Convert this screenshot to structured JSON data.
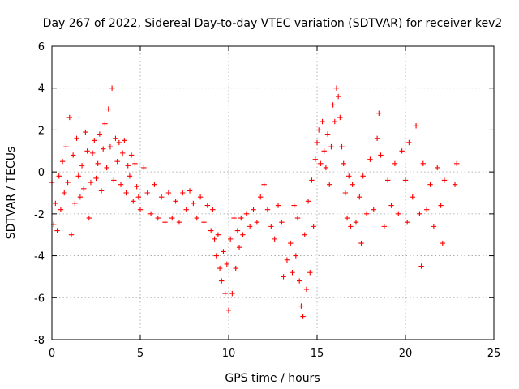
{
  "chart_data": {
    "type": "scatter",
    "title": "Day 267 of 2022, Sidereal Day-to-day VTEC variation (SDTVAR) for receiver kev2",
    "xlabel": "GPS time / hours",
    "ylabel": "SDTVAR / TECUs",
    "xlim": [
      0,
      25
    ],
    "ylim": [
      -8,
      6
    ],
    "xticks": [
      0,
      5,
      10,
      15,
      20,
      25
    ],
    "xtick_labels": [
      "0",
      "5",
      "10",
      "15",
      "20",
      "25"
    ],
    "yticks": [
      -8,
      -6,
      -4,
      -2,
      0,
      2,
      4,
      6
    ],
    "ytick_labels": [
      "-8",
      "-6",
      "-4",
      "-2",
      "0",
      "2",
      "4",
      "6"
    ],
    "grid": true,
    "marker": "plus",
    "marker_color": "#ff0000",
    "series": [
      {
        "name": "SDTVAR",
        "points": [
          [
            0.0,
            -0.5
          ],
          [
            0.1,
            -2.5
          ],
          [
            0.2,
            -1.5
          ],
          [
            0.3,
            -2.8
          ],
          [
            0.4,
            -0.2
          ],
          [
            0.5,
            -1.8
          ],
          [
            0.6,
            0.5
          ],
          [
            0.7,
            -1.0
          ],
          [
            0.8,
            1.2
          ],
          [
            0.9,
            -0.5
          ],
          [
            1.0,
            2.6
          ],
          [
            1.1,
            -3.0
          ],
          [
            1.2,
            0.8
          ],
          [
            1.3,
            -1.5
          ],
          [
            1.4,
            1.6
          ],
          [
            1.5,
            -0.2
          ],
          [
            1.6,
            -1.2
          ],
          [
            1.7,
            0.3
          ],
          [
            1.8,
            -0.8
          ],
          [
            1.9,
            1.9
          ],
          [
            2.0,
            1.0
          ],
          [
            2.1,
            -2.2
          ],
          [
            2.2,
            -0.5
          ],
          [
            2.3,
            0.9
          ],
          [
            2.4,
            1.5
          ],
          [
            2.5,
            -0.3
          ],
          [
            2.6,
            0.4
          ],
          [
            2.7,
            1.8
          ],
          [
            2.8,
            -0.9
          ],
          [
            2.9,
            1.1
          ],
          [
            3.0,
            2.3
          ],
          [
            3.1,
            0.2
          ],
          [
            3.2,
            3.0
          ],
          [
            3.3,
            1.2
          ],
          [
            3.4,
            4.0
          ],
          [
            3.5,
            -0.4
          ],
          [
            3.6,
            1.6
          ],
          [
            3.7,
            0.5
          ],
          [
            3.8,
            1.4
          ],
          [
            3.9,
            -0.6
          ],
          [
            4.0,
            0.9
          ],
          [
            4.1,
            1.5
          ],
          [
            4.2,
            -1.0
          ],
          [
            4.3,
            0.3
          ],
          [
            4.4,
            -0.2
          ],
          [
            4.5,
            0.8
          ],
          [
            4.6,
            -1.4
          ],
          [
            4.7,
            0.4
          ],
          [
            4.8,
            -0.7
          ],
          [
            4.9,
            -1.2
          ],
          [
            5.0,
            -1.8
          ],
          [
            5.2,
            0.2
          ],
          [
            5.4,
            -1.0
          ],
          [
            5.6,
            -2.0
          ],
          [
            5.8,
            -0.6
          ],
          [
            6.0,
            -2.2
          ],
          [
            6.2,
            -1.2
          ],
          [
            6.4,
            -2.4
          ],
          [
            6.6,
            -1.0
          ],
          [
            6.8,
            -2.2
          ],
          [
            7.0,
            -1.4
          ],
          [
            7.2,
            -2.4
          ],
          [
            7.4,
            -1.0
          ],
          [
            7.6,
            -1.8
          ],
          [
            7.8,
            -0.9
          ],
          [
            8.0,
            -1.5
          ],
          [
            8.2,
            -2.2
          ],
          [
            8.4,
            -1.2
          ],
          [
            8.6,
            -2.4
          ],
          [
            8.8,
            -1.6
          ],
          [
            9.0,
            -2.8
          ],
          [
            9.1,
            -1.8
          ],
          [
            9.2,
            -3.2
          ],
          [
            9.3,
            -4.0
          ],
          [
            9.4,
            -3.0
          ],
          [
            9.5,
            -4.6
          ],
          [
            9.6,
            -5.2
          ],
          [
            9.7,
            -3.8
          ],
          [
            9.8,
            -5.8
          ],
          [
            9.9,
            -4.4
          ],
          [
            10.0,
            -6.6
          ],
          [
            10.1,
            -3.2
          ],
          [
            10.2,
            -5.8
          ],
          [
            10.3,
            -2.2
          ],
          [
            10.4,
            -4.6
          ],
          [
            10.5,
            -2.8
          ],
          [
            10.6,
            -3.6
          ],
          [
            10.7,
            -2.2
          ],
          [
            10.8,
            -3.0
          ],
          [
            11.0,
            -2.0
          ],
          [
            11.2,
            -2.6
          ],
          [
            11.4,
            -1.8
          ],
          [
            11.6,
            -2.4
          ],
          [
            11.8,
            -1.2
          ],
          [
            12.0,
            -0.6
          ],
          [
            12.2,
            -1.8
          ],
          [
            12.4,
            -2.6
          ],
          [
            12.6,
            -3.2
          ],
          [
            12.8,
            -1.6
          ],
          [
            13.0,
            -2.4
          ],
          [
            13.1,
            -5.0
          ],
          [
            13.3,
            -4.2
          ],
          [
            13.5,
            -3.4
          ],
          [
            13.6,
            -4.8
          ],
          [
            13.7,
            -1.6
          ],
          [
            13.8,
            -4.0
          ],
          [
            13.9,
            -2.2
          ],
          [
            14.0,
            -5.2
          ],
          [
            14.1,
            -6.4
          ],
          [
            14.2,
            -6.9
          ],
          [
            14.3,
            -3.0
          ],
          [
            14.4,
            -5.6
          ],
          [
            14.5,
            -1.4
          ],
          [
            14.6,
            -4.8
          ],
          [
            14.7,
            -0.4
          ],
          [
            14.8,
            -2.6
          ],
          [
            14.9,
            0.6
          ],
          [
            15.0,
            1.4
          ],
          [
            15.1,
            2.0
          ],
          [
            15.2,
            0.4
          ],
          [
            15.3,
            2.4
          ],
          [
            15.4,
            1.0
          ],
          [
            15.5,
            0.2
          ],
          [
            15.6,
            1.8
          ],
          [
            15.7,
            -0.6
          ],
          [
            15.8,
            1.2
          ],
          [
            15.9,
            3.2
          ],
          [
            16.0,
            2.4
          ],
          [
            16.1,
            4.0
          ],
          [
            16.2,
            3.6
          ],
          [
            16.3,
            2.6
          ],
          [
            16.4,
            1.2
          ],
          [
            16.5,
            0.4
          ],
          [
            16.6,
            -1.0
          ],
          [
            16.7,
            -2.2
          ],
          [
            16.8,
            -0.2
          ],
          [
            16.9,
            -2.6
          ],
          [
            17.0,
            -0.6
          ],
          [
            17.2,
            -2.4
          ],
          [
            17.4,
            -1.2
          ],
          [
            17.5,
            -3.4
          ],
          [
            17.6,
            -0.2
          ],
          [
            17.8,
            -2.0
          ],
          [
            18.0,
            0.6
          ],
          [
            18.2,
            -1.8
          ],
          [
            18.4,
            1.6
          ],
          [
            18.5,
            2.8
          ],
          [
            18.6,
            0.8
          ],
          [
            18.8,
            -2.6
          ],
          [
            19.0,
            -0.4
          ],
          [
            19.2,
            -1.6
          ],
          [
            19.4,
            0.4
          ],
          [
            19.6,
            -2.0
          ],
          [
            19.8,
            1.0
          ],
          [
            20.0,
            -0.4
          ],
          [
            20.1,
            -2.4
          ],
          [
            20.2,
            1.4
          ],
          [
            20.4,
            -1.2
          ],
          [
            20.6,
            2.2
          ],
          [
            20.8,
            -2.0
          ],
          [
            20.9,
            -4.5
          ],
          [
            21.0,
            0.4
          ],
          [
            21.2,
            -1.8
          ],
          [
            21.4,
            -0.6
          ],
          [
            21.6,
            -2.6
          ],
          [
            21.8,
            0.2
          ],
          [
            22.0,
            -1.6
          ],
          [
            22.1,
            -3.4
          ],
          [
            22.2,
            -0.4
          ],
          [
            22.8,
            -0.6
          ],
          [
            22.9,
            0.4
          ]
        ]
      }
    ]
  }
}
